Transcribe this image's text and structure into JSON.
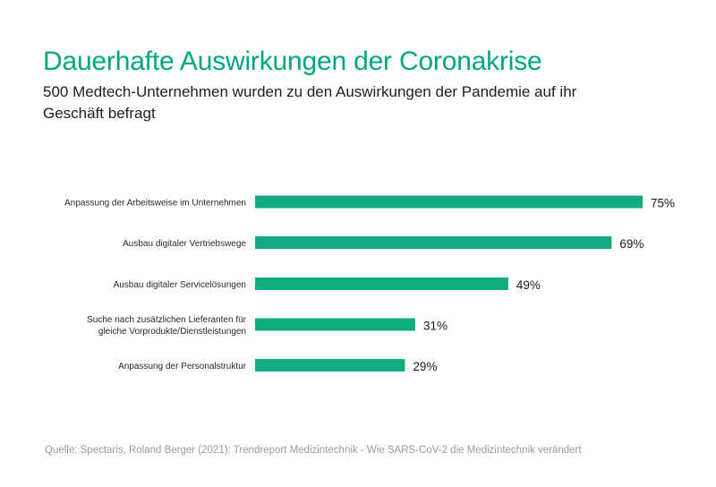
{
  "header": {
    "title": "Dauerhafte Auswirkungen der Coronakrise",
    "subtitle": "500 Medtech-Unternehmen wurden zu den Auswirkungen der Pandemie auf ihr Geschäft befragt"
  },
  "footer": {
    "source": "Quelle: Spectaris, Roland Berger (2021): Trendreport Medizintechnik - Wie SARS-CoV-2 die Medizintechnik verändert"
  },
  "colors": {
    "accent": "#00a67e",
    "bar": "#12ac82"
  },
  "chart_data": {
    "type": "bar",
    "orientation": "horizontal",
    "categories": [
      [
        "Anpassung der Arbeitsweise im Unternehmen"
      ],
      [
        "Ausbau digitaler Vertriebswege"
      ],
      [
        "Ausbau digitaler Servicelösungen"
      ],
      [
        "Suche nach zusätzlichen Lieferanten für",
        "gleiche Vorprodukte/Dienstleistungen"
      ],
      [
        "Anpassung der Personalstruktur"
      ]
    ],
    "values": [
      75,
      69,
      49,
      31,
      29
    ],
    "value_labels": [
      "75%",
      "69%",
      "49%",
      "31%",
      "29%"
    ],
    "unit": "%",
    "xlim": [
      0,
      75
    ],
    "grid": false,
    "legend": "none"
  }
}
